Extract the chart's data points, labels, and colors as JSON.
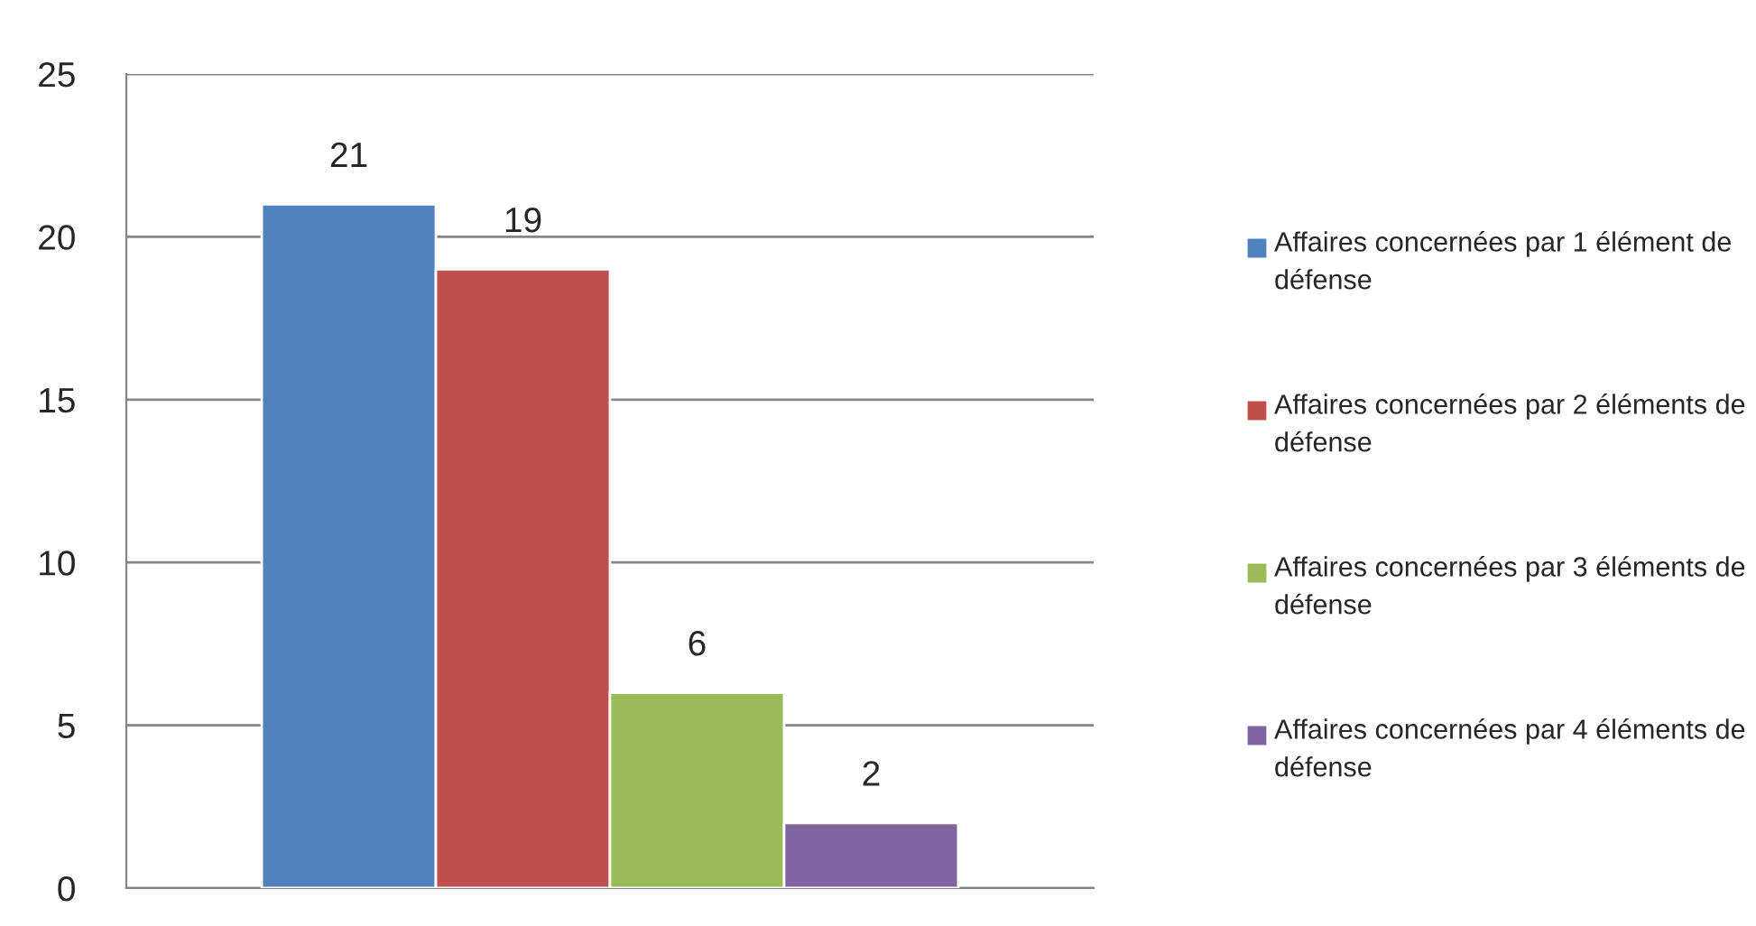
{
  "chart_data": {
    "type": "bar",
    "categories": [
      null
    ],
    "series": [
      {
        "name": "Affaires concernées par 1 élément de défense",
        "color": "#4f81bd",
        "values": [
          21
        ]
      },
      {
        "name": "Affaires concernées par 2 éléments de défense",
        "color": "#c0504d",
        "values": [
          19
        ]
      },
      {
        "name": "Affaires concernées par 3 éléments de défense",
        "color": "#9bbb59",
        "values": [
          6
        ]
      },
      {
        "name": "Affaires concernées par 4 éléments de défense",
        "color": "#8064a2",
        "values": [
          2
        ]
      }
    ],
    "ylim": [
      0,
      25
    ],
    "yticks": [
      0,
      5,
      10,
      15,
      20,
      25
    ],
    "grid": "y",
    "legend": "right",
    "data_labels": true
  }
}
